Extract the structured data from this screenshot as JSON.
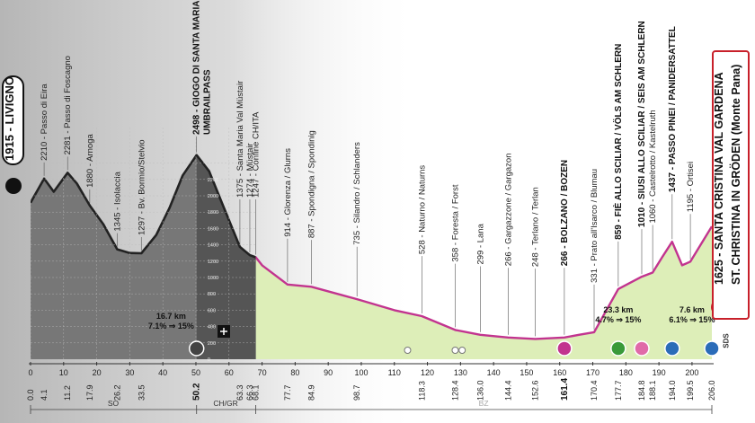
{
  "start": {
    "altitude": "1915",
    "name": "LIVIGNO"
  },
  "finish": {
    "line1": "1625 - SANTA CRISTINA VAL GARDENA",
    "line2": "ST. CHRISTINA IN GRÖDEN (Monte Pana)"
  },
  "sds_label": "SDS",
  "icons": {
    "start": "cyclist-icon",
    "finish": "cyclist-icon",
    "intermediate": "plus-icon"
  },
  "climbs": [
    {
      "km": "16.7 km",
      "grade": "7.1% ⇒ 15%"
    },
    {
      "km": "23.3 km",
      "grade": "4.7% ⇒ 15%"
    },
    {
      "km": "7.6 km",
      "grade": "6.1% ⇒ 15%"
    }
  ],
  "regions": [
    "SO",
    "CH/GR",
    "BZ"
  ],
  "colors": {
    "profile_line": "#c2348f",
    "fill_green": "#ddeeb8",
    "fill_dark": "#666666",
    "finish_border": "#c8202a"
  },
  "chart_data": {
    "type": "area",
    "title": "",
    "xlabel": "",
    "ylabel": "",
    "x_ticks": [
      "0.0",
      "4.1",
      "11.2",
      "17.9",
      "26.2",
      "33.5",
      "50.2",
      "63.3",
      "66.3",
      "68.1",
      "77.7",
      "84.9",
      "98.7",
      "118.3",
      "128.4",
      "136.0",
      "144.4",
      "152.6",
      "161.4",
      "170.4",
      "177.7",
      "184.8",
      "188.1",
      "194.0",
      "199.5",
      "206.0"
    ],
    "km_scale": [
      "0",
      "10",
      "20",
      "30",
      "40",
      "50",
      "60",
      "70",
      "80",
      "90",
      "100",
      "110",
      "120",
      "130",
      "140",
      "150",
      "160",
      "170",
      "180",
      "190",
      "200"
    ],
    "altitude_scale": [
      "2200",
      "2000",
      "1800",
      "1600",
      "1400",
      "1200",
      "1000",
      "800",
      "600",
      "400",
      "200",
      "0"
    ],
    "profile_km": [
      0,
      4.1,
      7,
      11.2,
      14,
      17.9,
      22,
      26.2,
      30,
      33.5,
      38,
      42,
      46,
      50.2,
      54,
      58,
      63.3,
      66.3,
      68.1,
      70,
      77.7,
      84.9,
      98.7,
      110,
      118.3,
      128.4,
      136.0,
      144.4,
      152.6,
      161.4,
      166,
      170.4,
      177.7,
      184.8,
      188.1,
      191,
      194.0,
      197,
      199.5,
      206.0
    ],
    "profile_alt": [
      1915,
      2210,
      2050,
      2281,
      2150,
      1880,
      1650,
      1345,
      1300,
      1297,
      1520,
      1850,
      2250,
      2498,
      2300,
      1900,
      1375,
      1274,
      1247,
      1150,
      914,
      887,
      735,
      600,
      528,
      358,
      299,
      266,
      248,
      266,
      300,
      331,
      859,
      1010,
      1060,
      1250,
      1437,
      1150,
      1195,
      1625
    ],
    "points": [
      {
        "km": 4.1,
        "alt": 2210,
        "label": "2210 - Passo di Eira",
        "bold": false
      },
      {
        "km": 11.2,
        "alt": 2281,
        "label": "2281 - Passo di Foscagno",
        "bold": false
      },
      {
        "km": 17.9,
        "alt": 1880,
        "label": "1880 - Arnoga",
        "bold": false
      },
      {
        "km": 26.2,
        "alt": 1345,
        "label": "1345 - Isolaccia",
        "bold": false
      },
      {
        "km": 33.5,
        "alt": 1297,
        "label": "1297 - Bv. Bormio/Stelvio",
        "bold": false
      },
      {
        "km": 50.2,
        "alt": 2498,
        "label": "2498 - GIOGO DI SANTA MARIA",
        "label2": "UMBRAILPASS",
        "bold": true
      },
      {
        "km": 63.3,
        "alt": 1375,
        "label": "1375 - Santa Maria Val Müstair",
        "bold": false
      },
      {
        "km": 66.3,
        "alt": 1274,
        "label": "1274 - Müstair",
        "bold": false
      },
      {
        "km": 68.1,
        "alt": 1247,
        "label": "1247 - Confine CH/ITA",
        "bold": false
      },
      {
        "km": 77.7,
        "alt": 914,
        "label": "914 - Glorenza / Glurns",
        "bold": false
      },
      {
        "km": 84.9,
        "alt": 887,
        "label": "887 - Spondigna / Spondinig",
        "bold": false
      },
      {
        "km": 98.7,
        "alt": 735,
        "label": "735 - Silandro / Schlanders",
        "bold": false
      },
      {
        "km": 118.3,
        "alt": 528,
        "label": "528 - Naturno / Naturns",
        "bold": false
      },
      {
        "km": 128.4,
        "alt": 358,
        "label": "358 - Foresta / Forst",
        "bold": false
      },
      {
        "km": 136.0,
        "alt": 299,
        "label": "299 - Lana",
        "bold": false
      },
      {
        "km": 144.4,
        "alt": 266,
        "label": "266 - Gargazzone / Gargazon",
        "bold": false
      },
      {
        "km": 152.6,
        "alt": 248,
        "label": "248 - Terlano / Terlan",
        "bold": false
      },
      {
        "km": 161.4,
        "alt": 266,
        "label": "266 - BOLZANO / BOZEN",
        "bold": true
      },
      {
        "km": 170.4,
        "alt": 331,
        "label": "331 - Prato all'Isarco / Blumau",
        "bold": false
      },
      {
        "km": 177.7,
        "alt": 859,
        "label": "859 - FIÈ ALLO SCILIAR / VÖLS AM SCHLERN",
        "bold": true
      },
      {
        "km": 184.8,
        "alt": 1010,
        "label": "1010 - SIUSI ALLO SCILIAR / SEIS AM SCHLERN",
        "bold": true
      },
      {
        "km": 188.1,
        "alt": 1060,
        "label": "1060 - Castelrotto / Kastelruth",
        "bold": false
      },
      {
        "km": 194.0,
        "alt": 1437,
        "label": "1437 - PASSO PINEI / PANIDERSATTEL",
        "bold": true
      },
      {
        "km": 199.5,
        "alt": 1195,
        "label": "1195 - Ortisei",
        "bold": false
      }
    ]
  }
}
